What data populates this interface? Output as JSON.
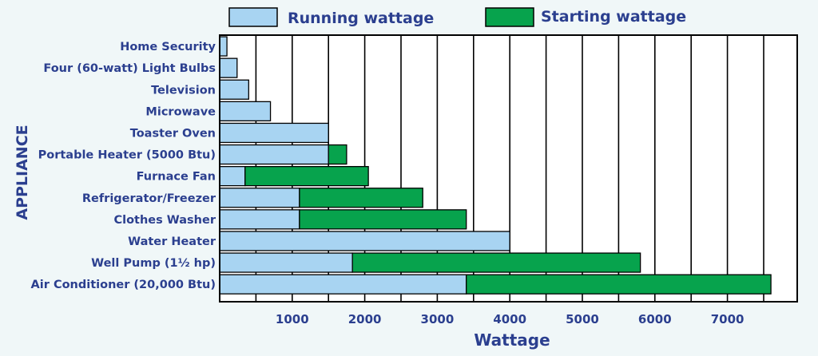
{
  "chart_data": {
    "type": "bar",
    "orientation": "horizontal",
    "stacked": true,
    "categories": [
      "Home Security",
      "Four (60-watt) Light Bulbs",
      "Television",
      "Microwave",
      "Toaster Oven",
      "Portable Heater (5000 Btu)",
      "Furnace Fan",
      "Refrigerator/Freezer",
      "Clothes Washer",
      "Water Heater",
      "Well Pump (1½ hp)",
      "Air Conditioner (20,000 Btu)"
    ],
    "series": [
      {
        "name": "Running wattage",
        "color": "#a8d4f2",
        "values": [
          100,
          240,
          400,
          700,
          1500,
          1500,
          350,
          1100,
          1100,
          4000,
          1830,
          3400
        ]
      },
      {
        "name": "Starting wattage",
        "color": "#07a34d",
        "values": [
          0,
          0,
          0,
          0,
          0,
          250,
          1700,
          1700,
          2300,
          0,
          3970,
          4200
        ]
      }
    ],
    "x_ticks": [
      1000,
      2000,
      3000,
      4000,
      5000,
      6000,
      7000
    ],
    "xlim": [
      0,
      8000
    ],
    "xlabel": "Wattage",
    "ylabel": "APPLIANCE",
    "grid": true,
    "legend": "top"
  }
}
